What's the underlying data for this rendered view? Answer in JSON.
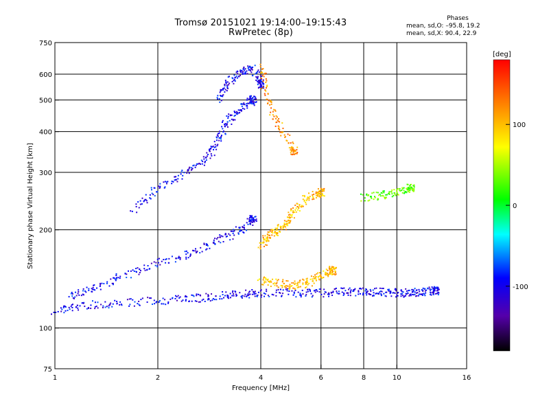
{
  "header": {
    "title_line1": "Tromsø 20151021 19:14:00–19:15:43",
    "title_line2": "RwPretec (8p)",
    "phases_title": "Phases",
    "phases_o": "mean, sd,O: –95.8, 19.2",
    "phases_x": "mean, sd,X:  90.4, 22.9"
  },
  "chart_data": {
    "type": "scatter",
    "title": "Tromsø 20151021 19:14:00–19:15:43",
    "subtitle": "RwPretec (8p)",
    "xlabel": "Frequency [MHz]",
    "ylabel": "Stationary phase Virtual Height [km]",
    "x_scale": "log",
    "y_scale": "log",
    "xlim": [
      1,
      16
    ],
    "ylim": [
      75,
      750
    ],
    "x_ticks": [
      1,
      2,
      4,
      6,
      8,
      10,
      16
    ],
    "x_tick_labels": [
      "1",
      "2",
      "4",
      "6",
      "8",
      "10",
      "16"
    ],
    "x_grid": [
      2,
      4,
      6,
      8,
      10
    ],
    "y_ticks": [
      75,
      100,
      200,
      300,
      400,
      500,
      600,
      750
    ],
    "y_tick_labels": [
      "75",
      "100",
      "200",
      "300",
      "400",
      "500",
      "600",
      "750"
    ],
    "y_grid": [
      100,
      200,
      300,
      400,
      500,
      600
    ],
    "grid": true,
    "colorbar": {
      "label": "[deg]",
      "range": [
        -180,
        180
      ],
      "tick_values": [
        100,
        0,
        -100
      ],
      "tick_labels": [
        "100",
        "0",
        "-100"
      ]
    },
    "series": [
      {
        "phase_deg": -100,
        "description_points": "O-mode bottom trace",
        "x": [
          1.0,
          1.2,
          1.5,
          2.0,
          2.5,
          3.0,
          3.5,
          4.0,
          5.0,
          6.0,
          7.0,
          8.0,
          9.0,
          10.0,
          11.0,
          12.0,
          13.0
        ],
        "y": [
          113,
          117,
          119,
          121,
          123,
          125,
          127,
          128,
          128,
          128,
          129,
          129,
          129,
          128,
          128,
          129,
          130
        ]
      },
      {
        "phase_deg": -100,
        "x": [
          1.1,
          1.3,
          1.6,
          2.0,
          2.5,
          3.0,
          3.5,
          3.8
        ],
        "y": [
          125,
          133,
          145,
          158,
          170,
          185,
          200,
          215
        ]
      },
      {
        "phase_deg": -100,
        "x": [
          1.7,
          2.0,
          2.4,
          2.8,
          3.0,
          3.2,
          3.5,
          3.8
        ],
        "y": [
          230,
          270,
          300,
          330,
          380,
          430,
          470,
          500
        ]
      },
      {
        "phase_deg": -100,
        "x": [
          3.0,
          3.2,
          3.5,
          3.8,
          4.0
        ],
        "y": [
          500,
          560,
          610,
          620,
          560
        ]
      },
      {
        "phase_deg": 100,
        "x": [
          4.0,
          4.2,
          4.5,
          4.8,
          5.0,
          5.5,
          6.0
        ],
        "y": [
          180,
          190,
          200,
          210,
          230,
          250,
          260
        ]
      },
      {
        "phase_deg": 100,
        "x": [
          4.0,
          4.5,
          5.0,
          5.5,
          6.0,
          6.5
        ],
        "y": [
          140,
          137,
          135,
          138,
          145,
          150
        ]
      },
      {
        "phase_deg": 120,
        "x": [
          4.0,
          4.2,
          4.5,
          5.0
        ],
        "y": [
          630,
          500,
          420,
          350
        ]
      },
      {
        "phase_deg": 30,
        "x": [
          8.0,
          9.0,
          10.0,
          11.0
        ],
        "y": [
          250,
          255,
          260,
          270
        ]
      }
    ]
  }
}
